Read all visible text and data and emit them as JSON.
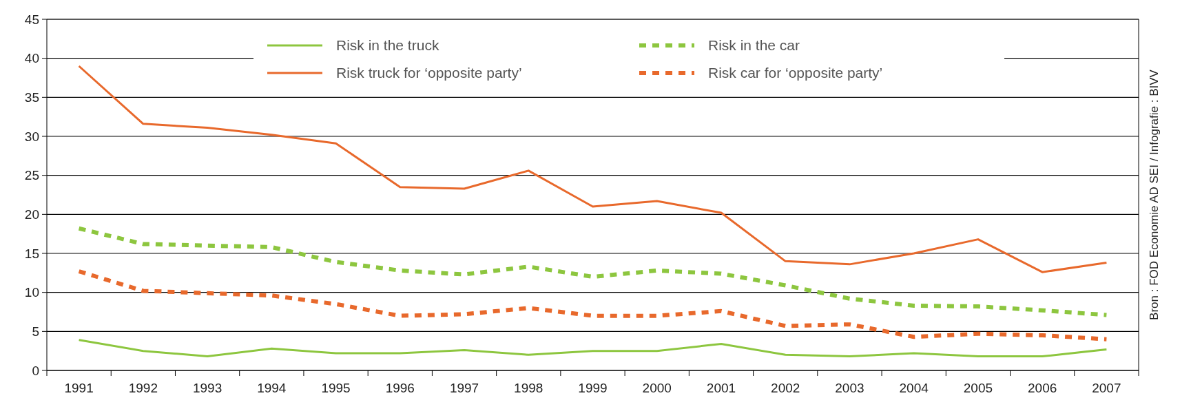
{
  "chart_data": {
    "type": "line",
    "categories": [
      "1991",
      "1992",
      "1993",
      "1994",
      "1995",
      "1996",
      "1997",
      "1998",
      "1999",
      "2000",
      "2001",
      "2002",
      "2003",
      "2004",
      "2005",
      "2006",
      "2007"
    ],
    "series": [
      {
        "name": "Risk in the truck",
        "color": "#8dc63f",
        "line_style": "solid",
        "values": [
          3.9,
          2.5,
          1.8,
          2.8,
          2.2,
          2.2,
          2.6,
          2.0,
          2.5,
          2.5,
          3.4,
          2.0,
          1.8,
          2.2,
          1.8,
          1.8,
          2.7
        ]
      },
      {
        "name": "Risk truck for ‘opposite party’",
        "color": "#e8692c",
        "line_style": "solid",
        "values": [
          39,
          31.6,
          31.1,
          30.2,
          29.1,
          23.5,
          23.3,
          25.6,
          21,
          21.7,
          20.2,
          14,
          13.6,
          15,
          16.8,
          12.6,
          13.8
        ]
      },
      {
        "name": "Risk in the car",
        "color": "#8dc63f",
        "line_style": "dashed",
        "values": [
          18.2,
          16.2,
          16,
          15.8,
          13.9,
          12.8,
          12.3,
          13.3,
          12,
          12.8,
          12.4,
          10.9,
          9.2,
          8.3,
          8.2,
          7.7,
          7.1
        ]
      },
      {
        "name": "Risk car for ‘opposite party’",
        "color": "#e8692c",
        "line_style": "dashed",
        "values": [
          12.7,
          10.2,
          9.9,
          9.6,
          8.5,
          7,
          7.2,
          8,
          7,
          7,
          7.6,
          5.7,
          5.9,
          4.3,
          4.7,
          4.5,
          4.0
        ]
      }
    ],
    "ylim": [
      0,
      45
    ],
    "yticks": [
      0,
      5,
      10,
      15,
      20,
      25,
      30,
      35,
      40,
      45
    ],
    "grid": "y",
    "legend": "top",
    "annotations": [
      "Bron : FOD Economie AD SEI / Infografie : BIVV"
    ]
  }
}
